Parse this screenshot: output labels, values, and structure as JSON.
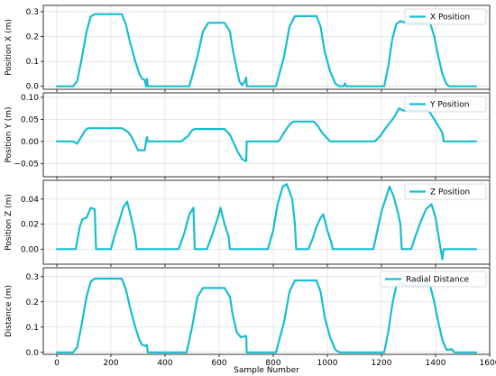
{
  "chart_data": [
    {
      "type": "line",
      "ylabel": "Position X (m)",
      "xlabel": "",
      "legend": {
        "label": "X Position",
        "placement": "top-right"
      },
      "color": "#17BECF",
      "ylim": [
        -0.012,
        0.325
      ],
      "yticks": [
        "0.0",
        "0.1",
        "0.2",
        "0.3"
      ],
      "xlim": [
        -50,
        1600
      ],
      "grid": true,
      "series": [
        {
          "name": "X Position",
          "points": [
            [
              0,
              0
            ],
            [
              60,
              0
            ],
            [
              75,
              0.02
            ],
            [
              90,
              0.1
            ],
            [
              110,
              0.22
            ],
            [
              125,
              0.28
            ],
            [
              140,
              0.29
            ],
            [
              180,
              0.29
            ],
            [
              200,
              0.29
            ],
            [
              240,
              0.29
            ],
            [
              255,
              0.25
            ],
            [
              270,
              0.18
            ],
            [
              290,
              0.1
            ],
            [
              305,
              0.05
            ],
            [
              315,
              0.03
            ],
            [
              325,
              0.025
            ],
            [
              330,
              0
            ],
            [
              333,
              0.03
            ],
            [
              336,
              0
            ],
            [
              490,
              0
            ],
            [
              520,
              0.12
            ],
            [
              540,
              0.22
            ],
            [
              560,
              0.255
            ],
            [
              620,
              0.255
            ],
            [
              640,
              0.22
            ],
            [
              650,
              0.15
            ],
            [
              665,
              0.07
            ],
            [
              675,
              0.02
            ],
            [
              685,
              0.005
            ],
            [
              695,
              0.02
            ],
            [
              700,
              0.035
            ],
            [
              702,
              0
            ],
            [
              810,
              0
            ],
            [
              840,
              0.12
            ],
            [
              860,
              0.24
            ],
            [
              880,
              0.282
            ],
            [
              960,
              0.282
            ],
            [
              975,
              0.24
            ],
            [
              990,
              0.14
            ],
            [
              1010,
              0.06
            ],
            [
              1030,
              0.01
            ],
            [
              1045,
              0
            ],
            [
              1060,
              0
            ],
            [
              1065,
              0.012
            ],
            [
              1070,
              0
            ],
            [
              1210,
              0
            ],
            [
              1225,
              0.08
            ],
            [
              1240,
              0.19
            ],
            [
              1255,
              0.25
            ],
            [
              1270,
              0.262
            ],
            [
              1290,
              0.255
            ],
            [
              1380,
              0.255
            ],
            [
              1395,
              0.2
            ],
            [
              1410,
              0.12
            ],
            [
              1425,
              0.05
            ],
            [
              1440,
              0.01
            ],
            [
              1450,
              0
            ],
            [
              1550,
              0
            ]
          ]
        }
      ]
    },
    {
      "type": "line",
      "ylabel": "Position Y (m)",
      "xlabel": "",
      "legend": {
        "label": "Y Position",
        "placement": "top-right"
      },
      "color": "#17BECF",
      "ylim": [
        -0.08,
        0.11
      ],
      "yticks": [
        "−0.05",
        "0.00",
        "0.05",
        "0.10"
      ],
      "xlim": [
        -50,
        1600
      ],
      "grid": true,
      "series": [
        {
          "name": "Y Position",
          "points": [
            [
              0,
              0
            ],
            [
              60,
              0
            ],
            [
              75,
              -0.005
            ],
            [
              90,
              0.01
            ],
            [
              105,
              0.025
            ],
            [
              115,
              0.03
            ],
            [
              125,
              0.03
            ],
            [
              240,
              0.03
            ],
            [
              255,
              0.025
            ],
            [
              265,
              0.02
            ],
            [
              275,
              0.012
            ],
            [
              285,
              0.0
            ],
            [
              300,
              -0.02
            ],
            [
              315,
              -0.02
            ],
            [
              325,
              -0.02
            ],
            [
              330,
              0
            ],
            [
              333,
              0.01
            ],
            [
              336,
              0
            ],
            [
              460,
              0
            ],
            [
              485,
              0.012
            ],
            [
              500,
              0.025
            ],
            [
              510,
              0.028
            ],
            [
              620,
              0.028
            ],
            [
              640,
              0.015
            ],
            [
              655,
              -0.005
            ],
            [
              670,
              -0.025
            ],
            [
              685,
              -0.04
            ],
            [
              700,
              -0.045
            ],
            [
              702,
              0
            ],
            [
              820,
              0
            ],
            [
              840,
              0.02
            ],
            [
              860,
              0.038
            ],
            [
              875,
              0.045
            ],
            [
              950,
              0.045
            ],
            [
              965,
              0.035
            ],
            [
              980,
              0.02
            ],
            [
              995,
              0.01
            ],
            [
              1010,
              0.0
            ],
            [
              1070,
              0
            ],
            [
              1175,
              0
            ],
            [
              1195,
              0.012
            ],
            [
              1215,
              0.03
            ],
            [
              1235,
              0.045
            ],
            [
              1250,
              0.058
            ],
            [
              1265,
              0.075
            ],
            [
              1280,
              0.07
            ],
            [
              1375,
              0.07
            ],
            [
              1390,
              0.055
            ],
            [
              1405,
              0.04
            ],
            [
              1415,
              0.03
            ],
            [
              1425,
              0.02
            ],
            [
              1430,
              0
            ],
            [
              1550,
              0
            ]
          ]
        }
      ]
    },
    {
      "type": "line",
      "ylabel": "Position Z (m)",
      "xlabel": "",
      "legend": {
        "label": "Z Position",
        "placement": "top-right"
      },
      "color": "#17BECF",
      "ylim": [
        -0.012,
        0.055
      ],
      "yticks": [
        "0.00",
        "0.02",
        "0.04"
      ],
      "xlim": [
        -50,
        1600
      ],
      "grid": true,
      "series": [
        {
          "name": "Z Position",
          "points": [
            [
              0,
              0
            ],
            [
              70,
              0
            ],
            [
              85,
              0.018
            ],
            [
              95,
              0.024
            ],
            [
              110,
              0.025
            ],
            [
              125,
              0.033
            ],
            [
              140,
              0.032
            ],
            [
              145,
              0
            ],
            [
              200,
              0
            ],
            [
              215,
              0.012
            ],
            [
              230,
              0.022
            ],
            [
              245,
              0.033
            ],
            [
              260,
              0.038
            ],
            [
              275,
              0.025
            ],
            [
              290,
              0.01
            ],
            [
              295,
              0
            ],
            [
              450,
              0
            ],
            [
              470,
              0.012
            ],
            [
              490,
              0.028
            ],
            [
              505,
              0.033
            ],
            [
              510,
              0
            ],
            [
              555,
              0
            ],
            [
              575,
              0.012
            ],
            [
              595,
              0.025
            ],
            [
              605,
              0.033
            ],
            [
              620,
              0.02
            ],
            [
              635,
              0.01
            ],
            [
              640,
              0
            ],
            [
              780,
              0
            ],
            [
              800,
              0.015
            ],
            [
              815,
              0.035
            ],
            [
              835,
              0.05
            ],
            [
              850,
              0.052
            ],
            [
              870,
              0.04
            ],
            [
              880,
              0.02
            ],
            [
              885,
              0
            ],
            [
              930,
              0
            ],
            [
              945,
              0.008
            ],
            [
              960,
              0.018
            ],
            [
              975,
              0.025
            ],
            [
              985,
              0.028
            ],
            [
              1000,
              0.015
            ],
            [
              1015,
              0.005
            ],
            [
              1020,
              0
            ],
            [
              1170,
              0
            ],
            [
              1185,
              0.015
            ],
            [
              1200,
              0.03
            ],
            [
              1215,
              0.04
            ],
            [
              1230,
              0.05
            ],
            [
              1245,
              0.042
            ],
            [
              1260,
              0.03
            ],
            [
              1270,
              0.02
            ],
            [
              1275,
              0
            ],
            [
              1310,
              0
            ],
            [
              1325,
              0.01
            ],
            [
              1345,
              0.022
            ],
            [
              1365,
              0.032
            ],
            [
              1385,
              0.036
            ],
            [
              1400,
              0.025
            ],
            [
              1415,
              0.005
            ],
            [
              1425,
              -0.008
            ],
            [
              1430,
              0
            ],
            [
              1550,
              0
            ]
          ]
        }
      ]
    },
    {
      "type": "line",
      "ylabel": "Distance (m)",
      "xlabel": "Sample Number",
      "legend": {
        "label": "Radial Distance",
        "placement": "top-right"
      },
      "color": "#17BECF",
      "ylim": [
        -0.008,
        0.335
      ],
      "yticks": [
        "0.0",
        "0.1",
        "0.2",
        "0.3"
      ],
      "xticks": [
        "0",
        "200",
        "400",
        "600",
        "800",
        "1000",
        "1200",
        "1400",
        "1600"
      ],
      "xlim": [
        -50,
        1600
      ],
      "grid": true,
      "series": [
        {
          "name": "Radial Distance",
          "points": [
            [
              0,
              0
            ],
            [
              60,
              0
            ],
            [
              75,
              0.02
            ],
            [
              90,
              0.1
            ],
            [
              110,
              0.22
            ],
            [
              125,
              0.28
            ],
            [
              140,
              0.292
            ],
            [
              240,
              0.292
            ],
            [
              255,
              0.25
            ],
            [
              270,
              0.18
            ],
            [
              290,
              0.1
            ],
            [
              305,
              0.05
            ],
            [
              315,
              0.03
            ],
            [
              330,
              0.025
            ],
            [
              333,
              0.03
            ],
            [
              336,
              0
            ],
            [
              480,
              0
            ],
            [
              500,
              0.1
            ],
            [
              520,
              0.22
            ],
            [
              540,
              0.255
            ],
            [
              620,
              0.255
            ],
            [
              640,
              0.22
            ],
            [
              650,
              0.15
            ],
            [
              665,
              0.08
            ],
            [
              680,
              0.06
            ],
            [
              700,
              0.065
            ],
            [
              702,
              0
            ],
            [
              810,
              0
            ],
            [
              840,
              0.12
            ],
            [
              860,
              0.24
            ],
            [
              880,
              0.285
            ],
            [
              960,
              0.285
            ],
            [
              975,
              0.24
            ],
            [
              990,
              0.14
            ],
            [
              1010,
              0.06
            ],
            [
              1030,
              0.01
            ],
            [
              1045,
              0
            ],
            [
              1070,
              0
            ],
            [
              1210,
              0
            ],
            [
              1225,
              0.08
            ],
            [
              1240,
              0.19
            ],
            [
              1255,
              0.265
            ],
            [
              1270,
              0.275
            ],
            [
              1290,
              0.265
            ],
            [
              1380,
              0.265
            ],
            [
              1395,
              0.2
            ],
            [
              1410,
              0.12
            ],
            [
              1425,
              0.05
            ],
            [
              1440,
              0.01
            ],
            [
              1460,
              0.012
            ],
            [
              1470,
              0
            ],
            [
              1550,
              0
            ]
          ]
        }
      ]
    }
  ]
}
